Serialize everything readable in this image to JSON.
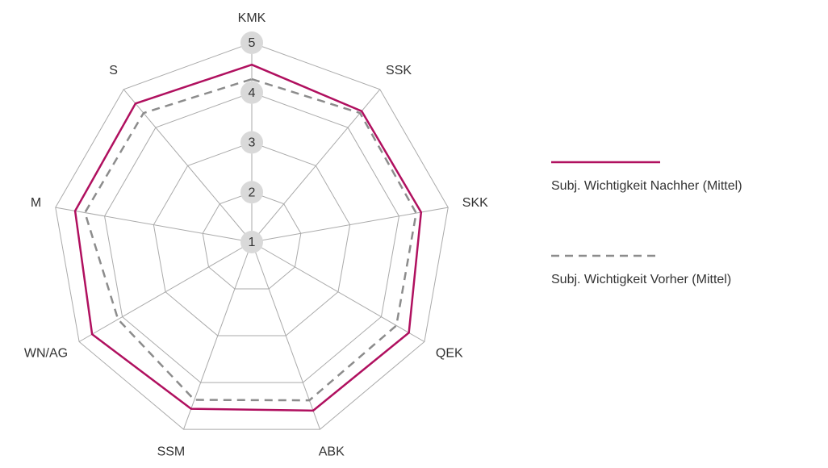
{
  "chart_data": {
    "type": "radar",
    "categories": [
      "KMK",
      "SSK",
      "SKK",
      "QEK",
      "ABK",
      "SSM",
      "WN/AG",
      "M",
      "S"
    ],
    "series": [
      {
        "name": "Subj. Wichtigkeit Nachher (Mittel)",
        "color": "#b0105f",
        "dash": false,
        "values": [
          4.56,
          4.43,
          4.45,
          4.64,
          4.6,
          4.56,
          4.7,
          4.6,
          4.63
        ]
      },
      {
        "name": "Subj. Wichtigkeit Vorher (Mittel)",
        "color": "#8c8c8c",
        "dash": true,
        "values": [
          4.27,
          4.38,
          4.35,
          4.35,
          4.38,
          4.37,
          4.1,
          4.4,
          4.38
        ]
      }
    ],
    "ylim": [
      1,
      5
    ],
    "yticks": [
      1,
      2,
      3,
      4,
      5
    ],
    "grid": true
  }
}
